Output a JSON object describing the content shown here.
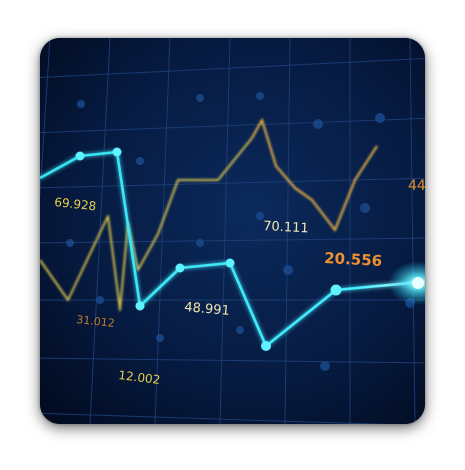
{
  "colors": {
    "background": "#03112e",
    "grid": "#1d3f78",
    "cyan_series": "#38e3f2",
    "yellow_series": "#e6cf4a",
    "orange_labels": "#e0902e"
  },
  "labels": {
    "v1": "69.928",
    "v2": "70.111",
    "v3": "20.556",
    "v4": "44",
    "v5": "31.012",
    "v6": "48.991",
    "v7": "12.002"
  }
}
